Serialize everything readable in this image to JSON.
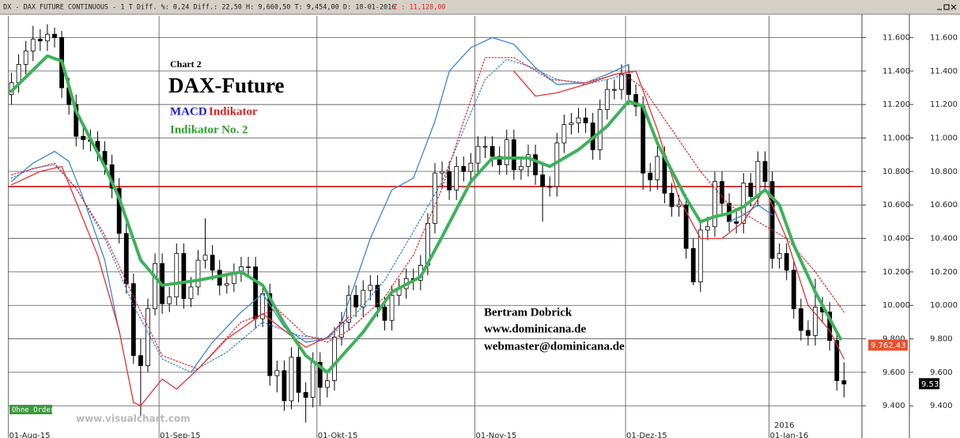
{
  "chart_data": {
    "type": "candlestick",
    "title": "DX - DAX FUTURE CONTINUOUS -  1 T Diff. %: 0,24 Diff.: 22,50 H: 9,660,50 T: 9,454,00 D: 18-01-2016",
    "subtitle": "Z : 11,128,00",
    "annotations": [
      "Chart 2",
      "DAX-Future",
      "MACD",
      "Indikator",
      "Indikator No. 2",
      "Bertram Dobrick",
      "www.dominicana.de",
      "webmaster@dominicana.de",
      "Ohne Orders",
      "www.visualchart.com",
      "2016"
    ],
    "xlim": [
      -0.5,
      118.5
    ],
    "xticks": [
      {
        "value": 0,
        "label": "01-Aug-15"
      },
      {
        "value": 21,
        "label": "01-Sep-15"
      },
      {
        "value": 43,
        "label": "01-Okt-15"
      },
      {
        "value": 65,
        "label": "01-Nov-15"
      },
      {
        "value": 86,
        "label": "01-Dez-15"
      },
      {
        "value": 106,
        "label": "01-Jan-16"
      }
    ],
    "ylim": [
      9250,
      11730
    ],
    "yticks": [
      {
        "value": 9400,
        "label": "9.400"
      },
      {
        "value": 9600,
        "label": "9.600"
      },
      {
        "value": 9800,
        "label": "9.800"
      },
      {
        "value": 10000,
        "label": "10.000"
      },
      {
        "value": 10200,
        "label": "10.200"
      },
      {
        "value": 10400,
        "label": "10.400"
      },
      {
        "value": 10600,
        "label": "10.600"
      },
      {
        "value": 10800,
        "label": "10.800"
      },
      {
        "value": 11000,
        "label": "11.000"
      },
      {
        "value": 11200,
        "label": "11.200"
      },
      {
        "value": 11400,
        "label": "11.400"
      },
      {
        "value": 11600,
        "label": "11.600"
      }
    ],
    "grid": true,
    "price_labels": [
      {
        "value": 9762.43,
        "label": "9.762,43",
        "color": "#e8502a"
      },
      {
        "value": 9532,
        "label": "9.532",
        "color": "#000000"
      }
    ],
    "hline": 10710,
    "hline_color": "#d01010",
    "candles": {
      "open": [
        11260,
        11330,
        11440,
        11520,
        11590,
        11580,
        11620,
        11600,
        11300,
        11200,
        11010,
        10990,
        10980,
        10920,
        10840,
        10700,
        10430,
        10130,
        9700,
        9640,
        9980,
        10250,
        10010,
        10050,
        10310,
        10040,
        10110,
        10270,
        10300,
        10210,
        10120,
        10130,
        10190,
        10230,
        10230,
        9920,
        10070,
        9580,
        9610,
        9430,
        9690,
        9480,
        9450,
        9660,
        9510,
        9550,
        9810,
        9900,
        10060,
        9990,
        10090,
        10120,
        9990,
        9910,
        10060,
        10100,
        10160,
        10150,
        10240,
        10490,
        10790,
        10800,
        10690,
        10830,
        10800,
        10850,
        10950,
        10950,
        10890,
        10840,
        10990,
        10810,
        10830,
        10900,
        10780,
        10710,
        10710,
        10970,
        11080,
        11090,
        11120,
        11090,
        10930,
        11170,
        11290,
        11290,
        11380,
        11260,
        11190,
        10790,
        10750,
        10890,
        10670,
        10590,
        10600,
        10340,
        10140,
        10450,
        10470,
        10740,
        10610,
        10500,
        10490,
        10730,
        10650,
        10860,
        10740,
        10280,
        10310,
        10210,
        9980,
        9850,
        9820,
        9990,
        9960,
        9790,
        9550
      ],
      "high": [
        11390,
        11500,
        11580,
        11670,
        11650,
        11680,
        11660,
        11640,
        11360,
        11260,
        11070,
        11050,
        11040,
        10980,
        10900,
        10760,
        10490,
        10190,
        9800,
        10040,
        10310,
        10310,
        10110,
        10370,
        10370,
        10170,
        10330,
        10520,
        10360,
        10270,
        10190,
        10250,
        10290,
        10290,
        10290,
        10130,
        10130,
        9670,
        9670,
        9750,
        9750,
        9540,
        9720,
        9720,
        9610,
        9870,
        9960,
        10120,
        10120,
        10150,
        10180,
        10180,
        10050,
        10120,
        10160,
        10220,
        10220,
        10300,
        10550,
        10850,
        10860,
        10860,
        10890,
        10890,
        10910,
        11010,
        11010,
        11010,
        10950,
        11050,
        11050,
        10890,
        10960,
        10960,
        10840,
        10770,
        11030,
        11140,
        11150,
        11180,
        11180,
        11150,
        11230,
        11350,
        11350,
        11440,
        11440,
        11320,
        11250,
        10850,
        10950,
        10950,
        10730,
        10660,
        10660,
        10400,
        10510,
        10530,
        10800,
        10800,
        10670,
        10560,
        10790,
        10790,
        10920,
        10920,
        10800,
        10370,
        10370,
        10270,
        10040,
        9910,
        10160,
        10050,
        10020,
        9850,
        9660
      ],
      "low": [
        11200,
        11270,
        11380,
        11460,
        11520,
        11520,
        11540,
        11240,
        11140,
        10950,
        10930,
        10920,
        10860,
        10780,
        10640,
        10370,
        10070,
        9650,
        9340,
        9600,
        9940,
        9950,
        9960,
        10000,
        9980,
        9990,
        10060,
        10220,
        10150,
        10060,
        10070,
        10080,
        10140,
        10170,
        9860,
        9870,
        9520,
        9480,
        9370,
        9380,
        9420,
        9300,
        9390,
        9400,
        9450,
        9490,
        9760,
        9850,
        9930,
        9930,
        10030,
        9930,
        9850,
        9850,
        10000,
        10040,
        10090,
        10090,
        10180,
        10430,
        10700,
        10630,
        10630,
        10740,
        10740,
        10790,
        10880,
        10830,
        10780,
        10780,
        10750,
        10750,
        10770,
        10720,
        10500,
        10650,
        10650,
        10910,
        11020,
        11030,
        11030,
        10870,
        10870,
        11110,
        11230,
        11230,
        11200,
        11130,
        10690,
        10680,
        10690,
        10610,
        10530,
        10530,
        10280,
        10120,
        10080,
        10390,
        10410,
        10550,
        10440,
        10430,
        10430,
        10590,
        10590,
        10680,
        10220,
        10220,
        10150,
        9920,
        9790,
        9760,
        9760,
        9900,
        9730,
        9490,
        9450
      ],
      "close": [
        11330,
        11440,
        11520,
        11590,
        11580,
        11620,
        11600,
        11300,
        11200,
        11010,
        10990,
        10980,
        10920,
        10840,
        10700,
        10430,
        10130,
        9700,
        9640,
        9980,
        10250,
        10010,
        10050,
        10310,
        10040,
        10110,
        10270,
        10300,
        10210,
        10120,
        10130,
        10190,
        10230,
        10230,
        9920,
        10070,
        9580,
        9610,
        9430,
        9690,
        9480,
        9450,
        9660,
        9510,
        9550,
        9810,
        9900,
        10060,
        9990,
        10090,
        10120,
        9990,
        9910,
        10060,
        10100,
        10160,
        10150,
        10240,
        10490,
        10790,
        10800,
        10690,
        10830,
        10800,
        10850,
        10950,
        10950,
        10890,
        10840,
        10990,
        10810,
        10830,
        10900,
        10780,
        10710,
        10710,
        10970,
        11080,
        11090,
        11120,
        11090,
        10930,
        11170,
        11290,
        11290,
        11380,
        11260,
        11190,
        10790,
        10750,
        10890,
        10670,
        10590,
        10600,
        10340,
        10140,
        10450,
        10470,
        10740,
        10610,
        10500,
        10490,
        10730,
        10650,
        10860,
        10740,
        10280,
        10310,
        10210,
        9980,
        9850,
        9820,
        9990,
        9960,
        9790,
        9550,
        9530
      ]
    },
    "series": [
      {
        "color": "#3a86d8",
        "dash": false,
        "width": 1.3,
        "x": [
          0,
          3,
          6,
          8,
          10,
          13,
          15,
          17,
          25,
          28,
          32,
          35,
          38,
          41,
          44,
          46,
          48,
          50,
          53,
          56,
          59,
          61,
          64,
          67,
          70,
          73,
          76,
          80,
          83,
          86,
          87,
          100,
          102,
          104,
          106
        ],
        "values": [
          10740,
          10850,
          10920,
          10860,
          10640,
          10270,
          9840,
          null,
          9600,
          9780,
          9960,
          10070,
          9870,
          9780,
          9800,
          9900,
          10150,
          10400,
          10690,
          10760,
          11100,
          11400,
          11540,
          11600,
          11560,
          11420,
          11320,
          11330,
          11380,
          11440,
          null,
          10500,
          10540,
          10600,
          10540
        ]
      },
      {
        "color": "#3a86d8",
        "dash": true,
        "width": 1.3,
        "x": [
          0,
          3,
          6,
          9,
          13,
          17,
          21,
          25,
          30,
          35,
          40,
          44,
          48,
          52,
          56,
          60,
          63,
          66,
          69,
          72,
          76,
          80,
          84,
          87
        ],
        "values": [
          10760,
          10820,
          10840,
          10700,
          10400,
          10000,
          9680,
          9600,
          9720,
          9900,
          9820,
          9800,
          9950,
          10150,
          10440,
          10740,
          11050,
          11350,
          11470,
          11430,
          11350,
          11320,
          11360,
          11400
        ]
      },
      {
        "color": "#e83030",
        "dash": false,
        "width": 1.3,
        "x": [
          0,
          4,
          7,
          9,
          12,
          15,
          17,
          18,
          21,
          23,
          26,
          30,
          35,
          38,
          41,
          44,
          47,
          50,
          70,
          73,
          76,
          80,
          84,
          87,
          90,
          93,
          96,
          99,
          102,
          105,
          108,
          111,
          114,
          116
        ],
        "values": [
          10720,
          10800,
          10830,
          10620,
          10300,
          9850,
          9420,
          9400,
          9560,
          9500,
          9620,
          9800,
          9950,
          9850,
          9750,
          9810,
          9930,
          null,
          11400,
          11250,
          11270,
          11320,
          11380,
          11400,
          11050,
          10640,
          10400,
          10400,
          10500,
          10700,
          10400,
          10000,
          9850,
          9680
        ]
      },
      {
        "color": "#e83030",
        "dash": true,
        "width": 1.3,
        "x": [
          0,
          6,
          9,
          13,
          17,
          21,
          26,
          32,
          37,
          41,
          44,
          47,
          52,
          56,
          60,
          63,
          66,
          70,
          75,
          80,
          85,
          88,
          92,
          96,
          100,
          104,
          108,
          112,
          116
        ],
        "values": [
          10780,
          10850,
          10700,
          10420,
          10050,
          9700,
          9620,
          9900,
          9980,
          9820,
          9780,
          9850,
          10050,
          10300,
          10700,
          11100,
          11480,
          11480,
          11350,
          11330,
          11390,
          11300,
          11050,
          10800,
          10600,
          10500,
          10400,
          10200,
          9960
        ]
      },
      {
        "color": "#3cb25a",
        "dash": false,
        "width": 4,
        "x": [
          0,
          5,
          7,
          9,
          13,
          15,
          18,
          21,
          26,
          32,
          35,
          38,
          41,
          44,
          49,
          53,
          57,
          60,
          64,
          67,
          72,
          75,
          79,
          83,
          86,
          88,
          90,
          94,
          96,
          98,
          100,
          102,
          105,
          107,
          109,
          112,
          115.5
        ],
        "values": [
          11280,
          11490,
          11460,
          11160,
          10830,
          10640,
          10270,
          10120,
          10150,
          10200,
          10120,
          9890,
          9700,
          9600,
          9840,
          10080,
          10170,
          10410,
          10740,
          10880,
          10880,
          10830,
          10930,
          11070,
          11220,
          11190,
          10970,
          10640,
          10500,
          10530,
          10550,
          10590,
          10690,
          10600,
          10360,
          10080,
          9800
        ]
      }
    ]
  }
}
